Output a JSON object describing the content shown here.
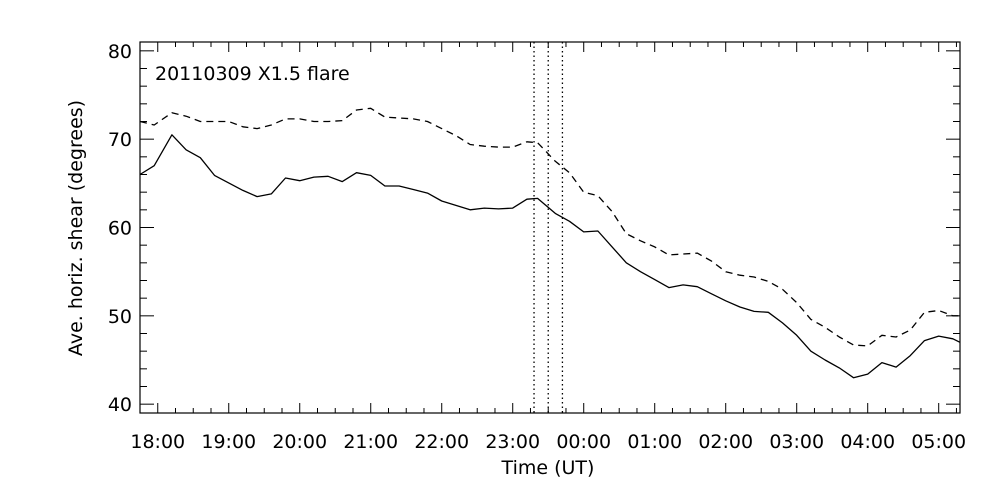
{
  "chart_data": {
    "type": "line",
    "annotation": "20110309  X1.5 flare",
    "xlabel": "Time  (UT)",
    "ylabel": "Ave.  horiz.  shear  (degrees)",
    "xlim": [
      17.75,
      29.3
    ],
    "ylim": [
      39,
      81
    ],
    "xticks": [
      18,
      19,
      20,
      21,
      22,
      23,
      24,
      25,
      26,
      27,
      28,
      29
    ],
    "xtick_labels": [
      "18:00",
      "19:00",
      "20:00",
      "21:00",
      "22:00",
      "23:00",
      "00:00",
      "01:00",
      "02:00",
      "03:00",
      "04:00",
      "05:00"
    ],
    "yticks": [
      40,
      50,
      60,
      70,
      80
    ],
    "ytick_labels": [
      "40",
      "50",
      "60",
      "70",
      "80"
    ],
    "flare_markers_hours": [
      23.3,
      23.5,
      23.7
    ],
    "series": [
      {
        "style": "solid",
        "x": [
          17.75,
          17.95,
          18.2,
          18.4,
          18.6,
          18.8,
          19.2,
          19.4,
          19.6,
          19.8,
          20.0,
          20.2,
          20.4,
          20.6,
          20.8,
          21.0,
          21.2,
          21.4,
          21.6,
          21.8,
          22.0,
          22.2,
          22.4,
          22.6,
          22.8,
          23.0,
          23.2,
          23.35,
          23.6,
          23.8,
          24.0,
          24.2,
          24.4,
          24.6,
          24.8,
          25.0,
          25.2,
          25.4,
          25.6,
          25.8,
          26.0,
          26.2,
          26.4,
          26.6,
          26.8,
          27.0,
          27.2,
          27.4,
          27.6,
          27.8,
          28.0,
          28.2,
          28.4,
          28.6,
          28.8,
          29.0,
          29.2,
          29.3
        ],
        "y": [
          66,
          67,
          70.5,
          68.8,
          67.9,
          65.9,
          64.2,
          63.5,
          63.8,
          65.6,
          65.3,
          65.7,
          65.8,
          65.2,
          66.2,
          65.9,
          64.7,
          64.7,
          64.3,
          63.9,
          63.0,
          62.5,
          62.0,
          62.2,
          62.1,
          62.2,
          63.2,
          63.3,
          61.6,
          60.7,
          59.5,
          59.6,
          57.8,
          56.0,
          55.0,
          54.1,
          53.2,
          53.5,
          53.3,
          52.5,
          51.7,
          51.0,
          50.5,
          50.4,
          49.2,
          47.8,
          46.0,
          45.0,
          44.1,
          43.0,
          43.4,
          44.7,
          44.2,
          45.5,
          47.2,
          47.7,
          47.4,
          47.0
        ]
      },
      {
        "style": "dashed",
        "x": [
          17.75,
          17.95,
          18.2,
          18.4,
          18.6,
          18.8,
          19.0,
          19.2,
          19.4,
          19.6,
          19.8,
          20.0,
          20.2,
          20.4,
          20.6,
          20.8,
          21.0,
          21.2,
          21.4,
          21.6,
          21.8,
          22.0,
          22.2,
          22.4,
          22.6,
          22.8,
          23.0,
          23.2,
          23.35,
          23.6,
          23.8,
          24.0,
          24.2,
          24.4,
          24.6,
          24.8,
          25.0,
          25.2,
          25.4,
          25.6,
          25.8,
          26.0,
          26.2,
          26.4,
          26.6,
          26.8,
          27.0,
          27.2,
          27.4,
          27.6,
          27.8,
          28.0,
          28.2,
          28.4,
          28.6,
          28.8,
          29.0,
          29.2,
          29.3
        ],
        "y": [
          72,
          71.6,
          73,
          72.6,
          72.0,
          72.0,
          72.0,
          71.4,
          71.2,
          71.6,
          72.3,
          72.3,
          72.0,
          72.0,
          72.1,
          73.3,
          73.5,
          72.5,
          72.4,
          72.3,
          72.0,
          71.2,
          70.4,
          69.4,
          69.2,
          69.1,
          69.1,
          69.7,
          69.6,
          67.5,
          66.2,
          64.0,
          63.6,
          61.8,
          59.3,
          58.5,
          57.8,
          56.9,
          57.0,
          57.1,
          56.2,
          55.0,
          54.6,
          54.4,
          53.9,
          53.0,
          51.5,
          49.6,
          48.7,
          47.6,
          46.7,
          46.6,
          47.8,
          47.6,
          48.4,
          50.4,
          50.6,
          50.0,
          50.0
        ]
      }
    ],
    "grid": false
  }
}
